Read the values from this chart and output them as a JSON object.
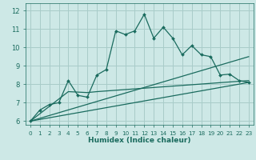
{
  "xlabel": "Humidex (Indice chaleur)",
  "bg_color": "#cde8e6",
  "grid_color": "#a8ccc9",
  "line_color": "#1a6b5e",
  "xlim": [
    -0.5,
    23.5
  ],
  "ylim": [
    5.8,
    12.4
  ],
  "xticks": [
    0,
    1,
    2,
    3,
    4,
    5,
    6,
    7,
    8,
    9,
    10,
    11,
    12,
    13,
    14,
    15,
    16,
    17,
    18,
    19,
    20,
    21,
    22,
    23
  ],
  "yticks": [
    6,
    7,
    8,
    9,
    10,
    11,
    12
  ],
  "jagged_x": [
    0,
    1,
    2,
    3,
    4,
    5,
    6,
    7,
    8,
    9,
    10,
    11,
    12,
    13,
    14,
    15,
    16,
    17,
    18,
    19,
    20,
    21,
    22,
    23
  ],
  "jagged_y": [
    6.0,
    6.6,
    6.9,
    7.0,
    8.2,
    7.4,
    7.3,
    8.5,
    8.8,
    10.9,
    10.7,
    10.9,
    11.8,
    10.5,
    11.1,
    10.5,
    9.6,
    10.1,
    9.6,
    9.5,
    8.5,
    8.55,
    8.2,
    8.1
  ],
  "line2_x": [
    0,
    23
  ],
  "line2_y": [
    6.0,
    9.5
  ],
  "line3_x": [
    0,
    4,
    6,
    7,
    23
  ],
  "line3_y": [
    6.0,
    7.6,
    7.55,
    7.6,
    8.2
  ],
  "line4_x": [
    0,
    23
  ],
  "line4_y": [
    6.0,
    8.1
  ],
  "xlabel_fontsize": 6.5,
  "tick_fontsize_x": 5.2,
  "tick_fontsize_y": 6.0
}
